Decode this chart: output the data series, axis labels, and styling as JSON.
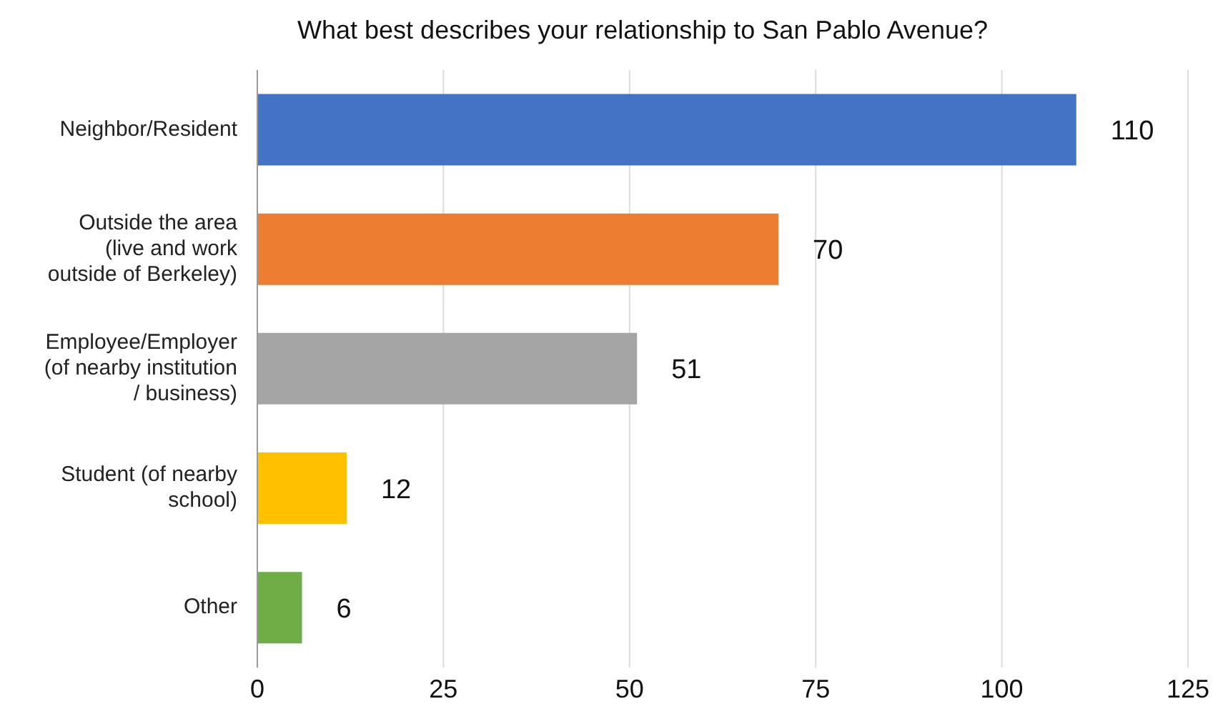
{
  "chart_data": {
    "type": "bar",
    "orientation": "horizontal",
    "title": "What best describes your relationship to San Pablo Avenue?",
    "categories": [
      "Neighbor/Resident",
      "Outside the area\n(live and work\noutside of Berkeley)",
      "Employee/Employer\n(of nearby institution\n/ business)",
      "Student (of nearby\nschool)",
      "Other"
    ],
    "values": [
      110,
      70,
      51,
      12,
      6
    ],
    "colors": [
      "#4472c4",
      "#ed7d31",
      "#a5a5a5",
      "#ffc000",
      "#70ad47"
    ],
    "xlim": [
      0,
      125
    ],
    "xticks": [
      0,
      25,
      50,
      75,
      100,
      125
    ],
    "grid": "x",
    "data_labels": true
  }
}
